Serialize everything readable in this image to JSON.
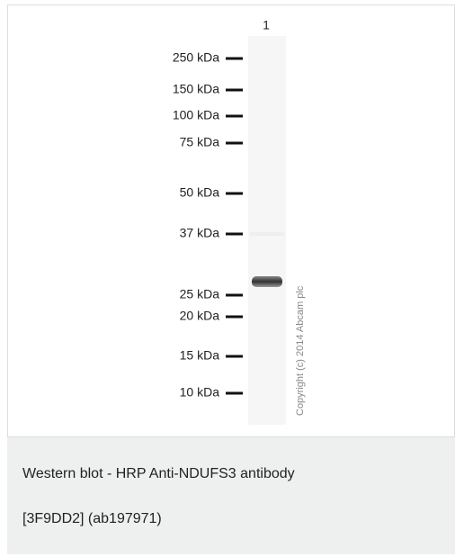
{
  "figure": {
    "lane_label": "1",
    "markers": [
      "250 kDa",
      "150 kDa",
      "100 kDa",
      "75 kDa",
      "50 kDa",
      "37 kDa",
      "25 kDa",
      "20 kDa",
      "15 kDa",
      "10 kDa"
    ],
    "copyright": "Copyright (c) 2014 Abcam plc"
  },
  "caption": {
    "lines": [
      "Western blot - HRP Anti-NDUFS3 antibody",
      "[3F9DD2] (ab197971)"
    ]
  }
}
